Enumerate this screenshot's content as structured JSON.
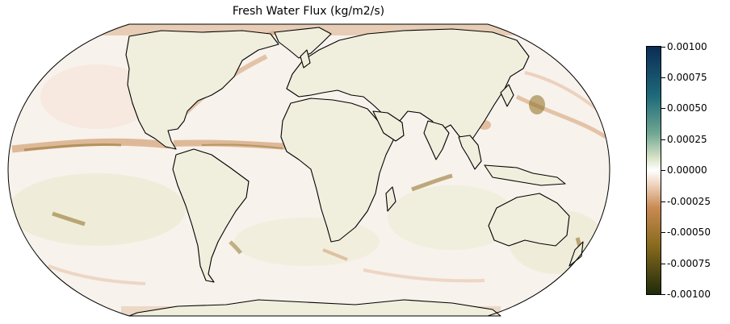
{
  "title": "Fresh Water Flux (kg/m2/s)",
  "colorbar": {
    "ticks": [
      "0.00100",
      "0.00075",
      "0.00050",
      "0.00025",
      "0.00000",
      "-0.00025",
      "-0.00050",
      "-0.00075",
      "-0.00100"
    ],
    "colors": [
      "#0b2c56",
      "#1e6a7a",
      "#6fa792",
      "#d9e3c7",
      "#ffffff",
      "#f1d9c6",
      "#c98a54",
      "#8a6b1e",
      "#1e2b0a"
    ]
  },
  "map": {
    "projection": "robinson",
    "land_color": "#f0eedc",
    "ocean_color": "#f7f0e8",
    "coastline_color": "#000000"
  }
}
